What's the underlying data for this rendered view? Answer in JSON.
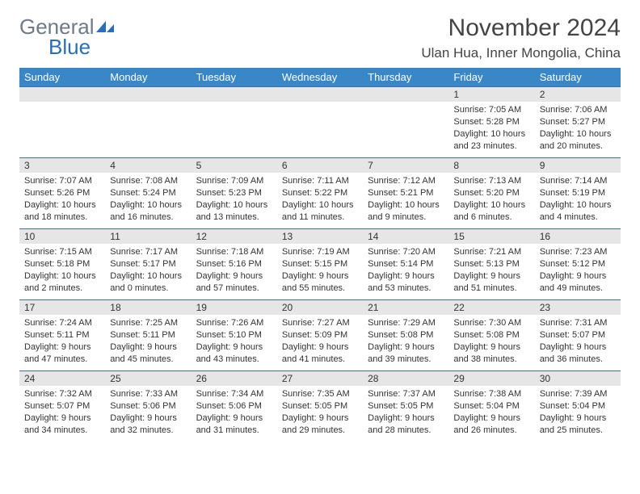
{
  "logo": {
    "word1": "General",
    "word2": "Blue",
    "color_gray": "#6f7a86",
    "color_blue": "#286fb7"
  },
  "title": "November 2024",
  "location": "Ulan Hua, Inner Mongolia, China",
  "header_bg": "#3a87c8",
  "daynum_bg": "#e6e6e6",
  "divider_color": "#3a6fa8",
  "weekdays": [
    "Sunday",
    "Monday",
    "Tuesday",
    "Wednesday",
    "Thursday",
    "Friday",
    "Saturday"
  ],
  "weeks": [
    [
      null,
      null,
      null,
      null,
      null,
      {
        "n": "1",
        "sunrise": "7:05 AM",
        "sunset": "5:28 PM",
        "daylight": "10 hours and 23 minutes."
      },
      {
        "n": "2",
        "sunrise": "7:06 AM",
        "sunset": "5:27 PM",
        "daylight": "10 hours and 20 minutes."
      }
    ],
    [
      {
        "n": "3",
        "sunrise": "7:07 AM",
        "sunset": "5:26 PM",
        "daylight": "10 hours and 18 minutes."
      },
      {
        "n": "4",
        "sunrise": "7:08 AM",
        "sunset": "5:24 PM",
        "daylight": "10 hours and 16 minutes."
      },
      {
        "n": "5",
        "sunrise": "7:09 AM",
        "sunset": "5:23 PM",
        "daylight": "10 hours and 13 minutes."
      },
      {
        "n": "6",
        "sunrise": "7:11 AM",
        "sunset": "5:22 PM",
        "daylight": "10 hours and 11 minutes."
      },
      {
        "n": "7",
        "sunrise": "7:12 AM",
        "sunset": "5:21 PM",
        "daylight": "10 hours and 9 minutes."
      },
      {
        "n": "8",
        "sunrise": "7:13 AM",
        "sunset": "5:20 PM",
        "daylight": "10 hours and 6 minutes."
      },
      {
        "n": "9",
        "sunrise": "7:14 AM",
        "sunset": "5:19 PM",
        "daylight": "10 hours and 4 minutes."
      }
    ],
    [
      {
        "n": "10",
        "sunrise": "7:15 AM",
        "sunset": "5:18 PM",
        "daylight": "10 hours and 2 minutes."
      },
      {
        "n": "11",
        "sunrise": "7:17 AM",
        "sunset": "5:17 PM",
        "daylight": "10 hours and 0 minutes."
      },
      {
        "n": "12",
        "sunrise": "7:18 AM",
        "sunset": "5:16 PM",
        "daylight": "9 hours and 57 minutes."
      },
      {
        "n": "13",
        "sunrise": "7:19 AM",
        "sunset": "5:15 PM",
        "daylight": "9 hours and 55 minutes."
      },
      {
        "n": "14",
        "sunrise": "7:20 AM",
        "sunset": "5:14 PM",
        "daylight": "9 hours and 53 minutes."
      },
      {
        "n": "15",
        "sunrise": "7:21 AM",
        "sunset": "5:13 PM",
        "daylight": "9 hours and 51 minutes."
      },
      {
        "n": "16",
        "sunrise": "7:23 AM",
        "sunset": "5:12 PM",
        "daylight": "9 hours and 49 minutes."
      }
    ],
    [
      {
        "n": "17",
        "sunrise": "7:24 AM",
        "sunset": "5:11 PM",
        "daylight": "9 hours and 47 minutes."
      },
      {
        "n": "18",
        "sunrise": "7:25 AM",
        "sunset": "5:11 PM",
        "daylight": "9 hours and 45 minutes."
      },
      {
        "n": "19",
        "sunrise": "7:26 AM",
        "sunset": "5:10 PM",
        "daylight": "9 hours and 43 minutes."
      },
      {
        "n": "20",
        "sunrise": "7:27 AM",
        "sunset": "5:09 PM",
        "daylight": "9 hours and 41 minutes."
      },
      {
        "n": "21",
        "sunrise": "7:29 AM",
        "sunset": "5:08 PM",
        "daylight": "9 hours and 39 minutes."
      },
      {
        "n": "22",
        "sunrise": "7:30 AM",
        "sunset": "5:08 PM",
        "daylight": "9 hours and 38 minutes."
      },
      {
        "n": "23",
        "sunrise": "7:31 AM",
        "sunset": "5:07 PM",
        "daylight": "9 hours and 36 minutes."
      }
    ],
    [
      {
        "n": "24",
        "sunrise": "7:32 AM",
        "sunset": "5:07 PM",
        "daylight": "9 hours and 34 minutes."
      },
      {
        "n": "25",
        "sunrise": "7:33 AM",
        "sunset": "5:06 PM",
        "daylight": "9 hours and 32 minutes."
      },
      {
        "n": "26",
        "sunrise": "7:34 AM",
        "sunset": "5:06 PM",
        "daylight": "9 hours and 31 minutes."
      },
      {
        "n": "27",
        "sunrise": "7:35 AM",
        "sunset": "5:05 PM",
        "daylight": "9 hours and 29 minutes."
      },
      {
        "n": "28",
        "sunrise": "7:37 AM",
        "sunset": "5:05 PM",
        "daylight": "9 hours and 28 minutes."
      },
      {
        "n": "29",
        "sunrise": "7:38 AM",
        "sunset": "5:04 PM",
        "daylight": "9 hours and 26 minutes."
      },
      {
        "n": "30",
        "sunrise": "7:39 AM",
        "sunset": "5:04 PM",
        "daylight": "9 hours and 25 minutes."
      }
    ]
  ],
  "labels": {
    "sunrise": "Sunrise:",
    "sunset": "Sunset:",
    "daylight": "Daylight:"
  }
}
